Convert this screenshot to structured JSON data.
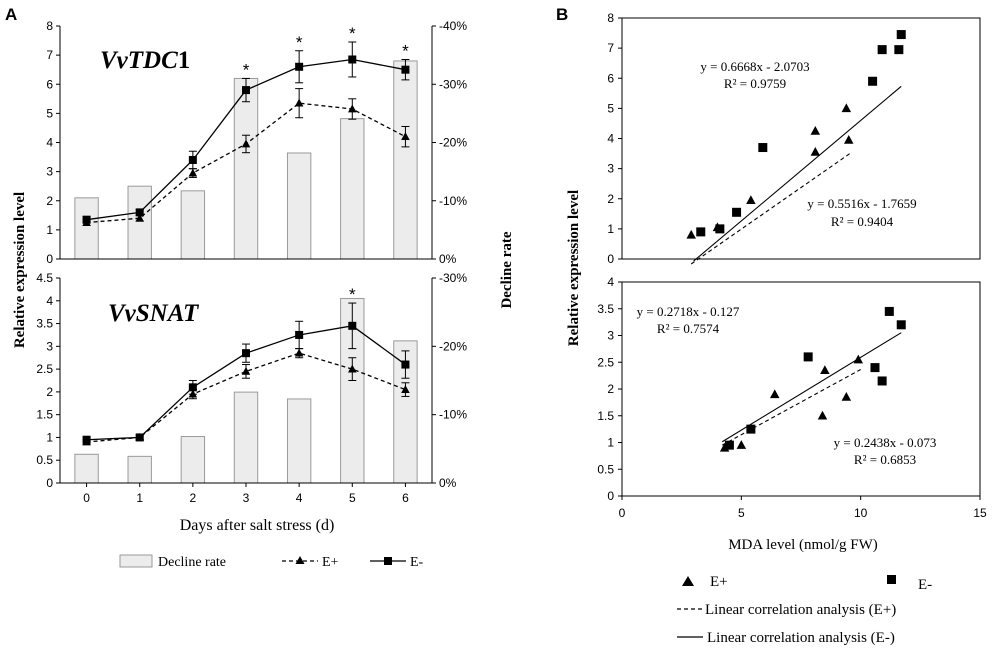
{
  "panel_labels": {
    "a": "A",
    "b": "B"
  },
  "chart_data": [
    {
      "id": "A-top",
      "type": "bar+line",
      "gene": "VvTDC1",
      "gene_italic_part": "VvTDC",
      "gene_plain_part": "1",
      "categories": [
        "0",
        "1",
        "2",
        "3",
        "4",
        "5",
        "6"
      ],
      "ylim": [
        0,
        8
      ],
      "yticks": [
        "0",
        "1",
        "2",
        "3",
        "4",
        "5",
        "6",
        "7",
        "8"
      ],
      "y2lim": [
        0,
        -40
      ],
      "y2ticks": [
        "0%",
        "-10%",
        "-20%",
        "-30%",
        "-40%"
      ],
      "bars": {
        "name": "Decline rate",
        "values": [
          -10.5,
          -12.5,
          -11.7,
          -31.0,
          -18.2,
          -24.1,
          -34.0
        ]
      },
      "series": [
        {
          "name": "E+",
          "style": "dashed-triangle",
          "values": [
            1.25,
            1.4,
            2.95,
            3.95,
            5.35,
            5.15,
            4.2
          ],
          "errors": [
            0.1,
            0.1,
            0.15,
            0.3,
            0.5,
            0.35,
            0.35
          ]
        },
        {
          "name": "E-",
          "style": "solid-square",
          "values": [
            1.35,
            1.6,
            3.4,
            5.8,
            6.6,
            6.85,
            6.5
          ],
          "errors": [
            0.1,
            0.1,
            0.3,
            0.4,
            0.55,
            0.6,
            0.35
          ]
        }
      ],
      "significance": [
        "",
        "",
        "",
        "*",
        "*",
        "*",
        "*"
      ]
    },
    {
      "id": "A-bottom",
      "type": "bar+line",
      "gene": "VvSNAT",
      "gene_italic_part": "VvSNAT",
      "gene_plain_part": "",
      "categories": [
        "0",
        "1",
        "2",
        "3",
        "4",
        "5",
        "6"
      ],
      "ylim": [
        0,
        4.5
      ],
      "yticks": [
        "0",
        "0.5",
        "1",
        "1.5",
        "2",
        "2.5",
        "3",
        "3.5",
        "4",
        "4.5"
      ],
      "y2lim": [
        0,
        -30
      ],
      "y2ticks": [
        "0%",
        "-10%",
        "-20%",
        "-30%"
      ],
      "bars": {
        "name": "Decline rate",
        "values": [
          -4.2,
          -3.9,
          -6.8,
          -13.3,
          -12.3,
          -27.0,
          -20.8
        ]
      },
      "series": [
        {
          "name": "E+",
          "style": "dashed-triangle",
          "values": [
            0.9,
            1.0,
            1.95,
            2.45,
            2.85,
            2.5,
            2.05
          ],
          "errors": [
            0.05,
            0.05,
            0.1,
            0.15,
            0.1,
            0.25,
            0.15
          ]
        },
        {
          "name": "E-",
          "style": "solid-square",
          "values": [
            0.95,
            1.0,
            2.1,
            2.85,
            3.25,
            3.45,
            2.6
          ],
          "errors": [
            0.05,
            0.05,
            0.15,
            0.2,
            0.3,
            0.5,
            0.3
          ]
        }
      ],
      "significance": [
        "",
        "",
        "",
        "",
        "",
        "*",
        ""
      ]
    },
    {
      "id": "B-top",
      "type": "scatter",
      "gene": "VvTDC1",
      "xlim": [
        0,
        15
      ],
      "ylim": [
        0,
        8
      ],
      "yticks": [
        "0",
        "1",
        "2",
        "3",
        "4",
        "5",
        "6",
        "7",
        "8"
      ],
      "series": [
        {
          "name": "E+",
          "marker": "triangle",
          "points": [
            [
              2.9,
              0.8
            ],
            [
              4.0,
              1.05
            ],
            [
              5.4,
              1.95
            ],
            [
              8.1,
              4.25
            ],
            [
              8.1,
              3.55
            ],
            [
              9.4,
              5.0
            ],
            [
              9.5,
              3.95
            ]
          ]
        },
        {
          "name": "E-",
          "marker": "square",
          "points": [
            [
              3.3,
              0.9
            ],
            [
              4.1,
              1.0
            ],
            [
              4.8,
              1.55
            ],
            [
              5.9,
              3.7
            ],
            [
              10.5,
              5.9
            ],
            [
              10.9,
              6.95
            ],
            [
              11.6,
              6.95
            ],
            [
              11.7,
              7.45
            ]
          ]
        }
      ],
      "fits": [
        {
          "name": "E+",
          "style": "dashed",
          "slope": 0.5516,
          "intercept": -1.7659,
          "x_range": [
            2.9,
            9.6
          ]
        },
        {
          "name": "E-",
          "style": "solid",
          "slope": 0.6668,
          "intercept": -2.0703,
          "x_range": [
            3.0,
            11.7
          ]
        }
      ],
      "annotations": [
        {
          "text": "y = 0.6668x - 2.0703",
          "anchor": "upper-left"
        },
        {
          "text": "R² = 0.9759",
          "anchor": "upper-left"
        },
        {
          "text": "y = 0.5516x - 1.7659",
          "anchor": "lower-right"
        },
        {
          "text": "R² = 0.9404",
          "anchor": "lower-right"
        }
      ]
    },
    {
      "id": "B-bottom",
      "type": "scatter",
      "gene": "VvSNAT",
      "xlim": [
        0,
        15
      ],
      "xticks": [
        "0",
        "5",
        "10",
        "15"
      ],
      "ylim": [
        0,
        4
      ],
      "yticks": [
        "0",
        "0.5",
        "1",
        "1.5",
        "2",
        "2.5",
        "3",
        "3.5",
        "4"
      ],
      "series": [
        {
          "name": "E+",
          "marker": "triangle",
          "points": [
            [
              4.3,
              0.9
            ],
            [
              5.0,
              0.95
            ],
            [
              6.4,
              1.9
            ],
            [
              8.5,
              2.35
            ],
            [
              8.4,
              1.5
            ],
            [
              9.4,
              1.85
            ],
            [
              9.9,
              2.55
            ]
          ]
        },
        {
          "name": "E-",
          "marker": "square",
          "points": [
            [
              4.5,
              0.95
            ],
            [
              5.4,
              1.25
            ],
            [
              7.8,
              2.6
            ],
            [
              10.6,
              2.4
            ],
            [
              10.9,
              2.15
            ],
            [
              11.2,
              3.45
            ],
            [
              11.7,
              3.2
            ]
          ]
        }
      ],
      "fits": [
        {
          "name": "E+",
          "style": "dashed",
          "slope": 0.2438,
          "intercept": -0.073,
          "x_range": [
            4.2,
            10.0
          ]
        },
        {
          "name": "E-",
          "style": "solid",
          "slope": 0.2718,
          "intercept": -0.127,
          "x_range": [
            4.2,
            11.7
          ]
        }
      ],
      "annotations": [
        {
          "text": "y = 0.2718x - 0.127",
          "anchor": "upper-left"
        },
        {
          "text": "R² = 0.7574",
          "anchor": "upper-left"
        },
        {
          "text": "y = 0.2438x - 0.073",
          "anchor": "lower-right"
        },
        {
          "text": "R² = 0.6853",
          "anchor": "lower-right"
        }
      ]
    }
  ],
  "axis_labels": {
    "a_y": "Relative expression level",
    "a_y2": "Decline rate",
    "a_x": "Days after salt stress (d)",
    "b_y": "Relative expression level",
    "b_x": "MDA level (nmol/g FW)"
  },
  "legend_a": {
    "bar": "Decline rate",
    "eplus": "E+",
    "eminus": "E-"
  },
  "legend_b": {
    "eplus": "E+",
    "eminus": "E-",
    "fit_eplus": "Linear correlation analysis (E+)",
    "fit_eminus": "Linear correlation analysis (E-)"
  }
}
